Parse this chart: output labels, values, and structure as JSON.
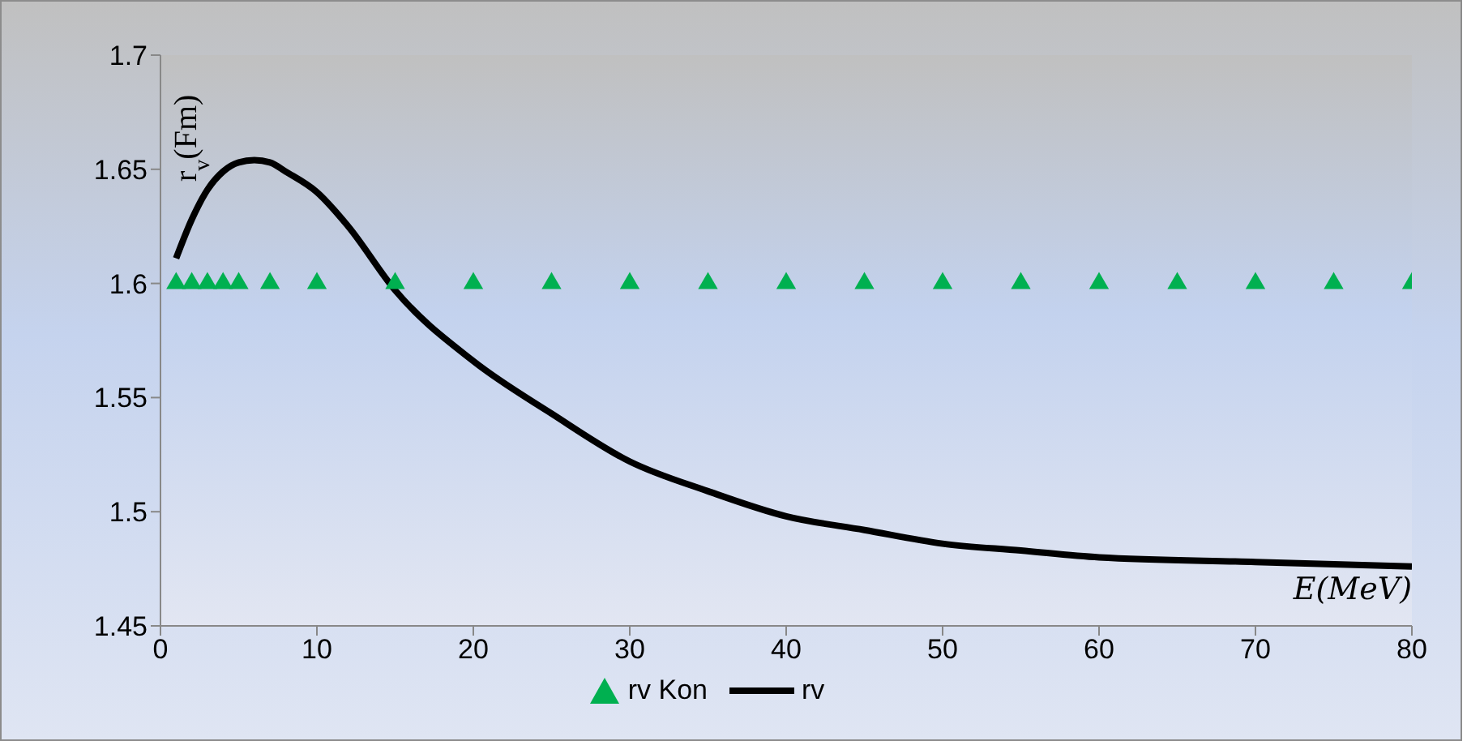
{
  "chart_data": {
    "type": "line",
    "xlabel": "E(MeV)",
    "ylabel": "r$_{v}$(Fm)",
    "xlim": [
      0,
      80
    ],
    "xticks": [
      0,
      10,
      20,
      30,
      40,
      50,
      60,
      70,
      80
    ],
    "ylim": [
      1.45,
      1.7
    ],
    "yticks": [
      1.45,
      1.5,
      1.55,
      1.6,
      1.65,
      1.7
    ],
    "legend": "bottom",
    "series": [
      {
        "name": "rv Kon",
        "type": "scatter",
        "marker": "triangle",
        "color": "#00b050",
        "x": [
          1,
          2,
          3,
          4,
          5,
          7,
          10,
          15,
          20,
          25,
          30,
          35,
          40,
          45,
          50,
          55,
          60,
          65,
          70,
          75,
          80
        ],
        "values": [
          1.6,
          1.6,
          1.6,
          1.6,
          1.6,
          1.6,
          1.6,
          1.6,
          1.6,
          1.6,
          1.6,
          1.6,
          1.6,
          1.6,
          1.6,
          1.6,
          1.6,
          1.6,
          1.6,
          1.6,
          1.6
        ]
      },
      {
        "name": "rv",
        "type": "line",
        "color": "#000000",
        "marker": "none",
        "line_style": "solid",
        "x": [
          1,
          2,
          3,
          4,
          5,
          6,
          7,
          8,
          10,
          12,
          15,
          20,
          25,
          30,
          35,
          40,
          45,
          50,
          55,
          60,
          70,
          80
        ],
        "values": [
          1.611,
          1.628,
          1.641,
          1.649,
          1.653,
          1.654,
          1.653,
          1.649,
          1.64,
          1.625,
          1.597,
          1.566,
          1.543,
          1.522,
          1.509,
          1.498,
          1.492,
          1.486,
          1.483,
          1.48,
          1.478,
          1.476
        ]
      }
    ]
  }
}
